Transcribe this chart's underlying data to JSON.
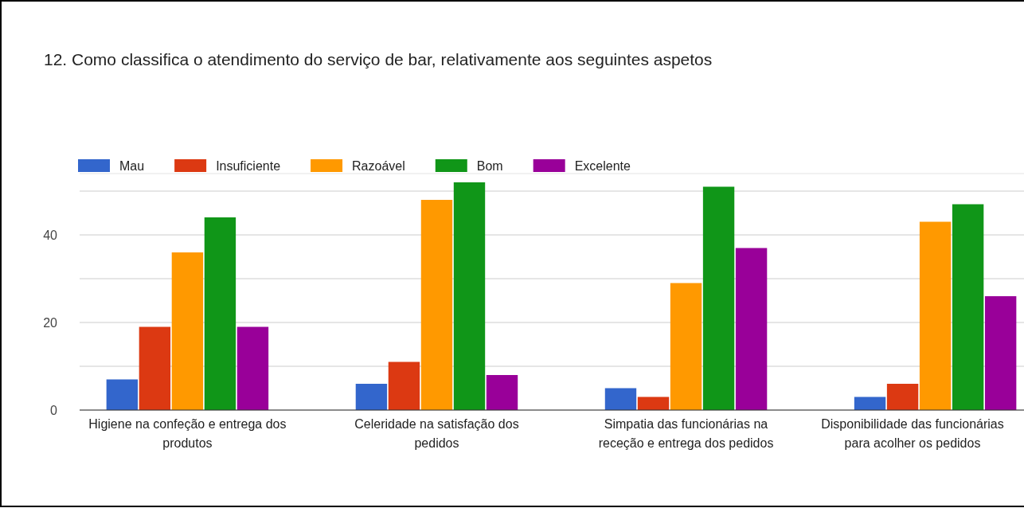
{
  "chart_data": {
    "type": "bar",
    "title": "12. Como classifica o atendimento do serviço de bar, relativamente aos seguintes aspetos",
    "categories": [
      "Higiene na confeção e entrega dos produtos",
      "Celeridade na satisfação dos pedidos",
      "Simpatia das funcionárias na receção e entrega dos pedidos",
      "Disponibilidade das funcionárias para acolher os pedidos"
    ],
    "series": [
      {
        "name": "Mau",
        "color": "#3366cc",
        "values": [
          7,
          6,
          5,
          3
        ]
      },
      {
        "name": "Insuficiente",
        "color": "#dc3912",
        "values": [
          19,
          11,
          3,
          6
        ]
      },
      {
        "name": "Razoável",
        "color": "#ff9900",
        "values": [
          36,
          48,
          29,
          43
        ]
      },
      {
        "name": "Bom",
        "color": "#109618",
        "values": [
          44,
          52,
          51,
          47
        ]
      },
      {
        "name": "Excelente",
        "color": "#990099",
        "values": [
          19,
          8,
          37,
          26
        ]
      }
    ],
    "ylim": [
      0,
      54
    ],
    "yticks": [
      0,
      {
        "value": 10,
        "label": null
      },
      20,
      {
        "value": 30,
        "label": null
      },
      40,
      {
        "value": 50,
        "label": null
      }
    ],
    "grid": "y",
    "legend": "top left"
  }
}
